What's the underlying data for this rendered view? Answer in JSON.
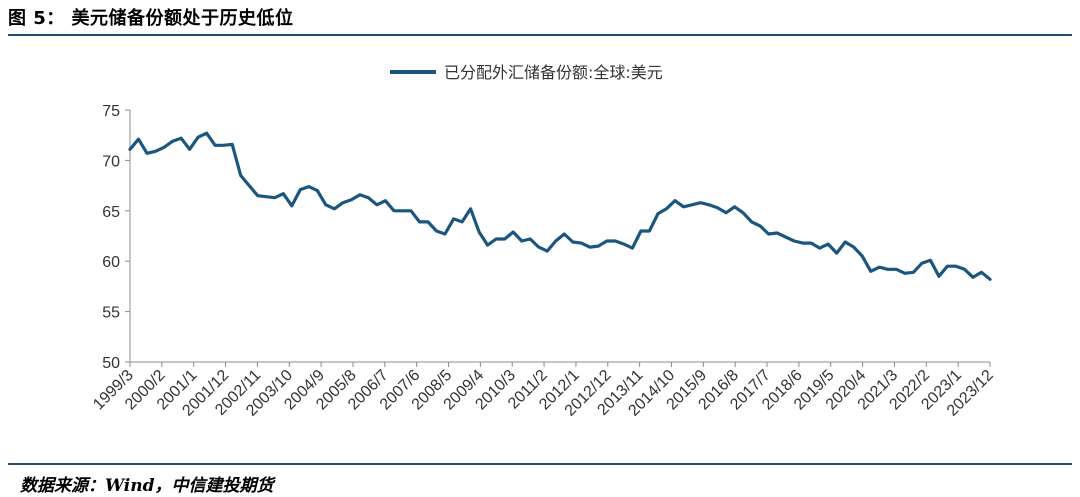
{
  "figure": {
    "title": "图 5：   美元储备份额处于历史低位",
    "source": "数据来源：Wind，中信建投期货"
  },
  "colors": {
    "line": "#1b567e",
    "axis": "#8c8c8c",
    "rule": "#1f4e79"
  },
  "chart_data": {
    "type": "line",
    "title": "",
    "xlabel": "",
    "ylabel": "",
    "ylim": [
      50,
      75
    ],
    "yticks": [
      50,
      55,
      60,
      65,
      70,
      75
    ],
    "grid": false,
    "legend_position": "top-center",
    "xtick_labels": [
      "1999/3",
      "2000/2",
      "2001/1",
      "2001/12",
      "2002/11",
      "2003/10",
      "2004/9",
      "2005/8",
      "2006/7",
      "2007/6",
      "2008/5",
      "2009/4",
      "2010/3",
      "2011/2",
      "2012/1",
      "2012/12",
      "2013/11",
      "2014/10",
      "2015/9",
      "2016/8",
      "2017/7",
      "2018/6",
      "2019/5",
      "2020/4",
      "2021/3",
      "2022/2",
      "2023/1",
      "2023/12"
    ],
    "series": [
      {
        "name": "已分配外汇储备份额:全球:美元",
        "color": "#1b567e",
        "values": [
          71.1,
          72.1,
          70.7,
          70.9,
          71.3,
          71.9,
          72.2,
          71.1,
          72.3,
          72.7,
          71.5,
          71.5,
          71.6,
          68.5,
          67.5,
          66.5,
          66.4,
          66.3,
          66.7,
          65.5,
          67.1,
          67.4,
          67.0,
          65.6,
          65.2,
          65.8,
          66.1,
          66.6,
          66.3,
          65.6,
          66.0,
          65.0,
          65.0,
          65.0,
          63.9,
          63.9,
          63.0,
          62.7,
          64.2,
          63.9,
          65.2,
          62.9,
          61.6,
          62.2,
          62.2,
          62.9,
          62.0,
          62.2,
          61.4,
          61.0,
          62.0,
          62.7,
          61.9,
          61.8,
          61.4,
          61.5,
          62.0,
          62.0,
          61.7,
          61.3,
          63.0,
          63.0,
          64.7,
          65.2,
          66.0,
          65.4,
          65.6,
          65.8,
          65.6,
          65.3,
          64.8,
          65.4,
          64.8,
          63.9,
          63.5,
          62.7,
          62.8,
          62.4,
          62.0,
          61.8,
          61.8,
          61.3,
          61.7,
          60.8,
          61.9,
          61.4,
          60.5,
          59.0,
          59.4,
          59.2,
          59.2,
          58.8,
          58.9,
          59.8,
          60.1,
          58.5,
          59.5,
          59.5,
          59.2,
          58.4,
          58.9,
          58.2
        ]
      }
    ]
  }
}
